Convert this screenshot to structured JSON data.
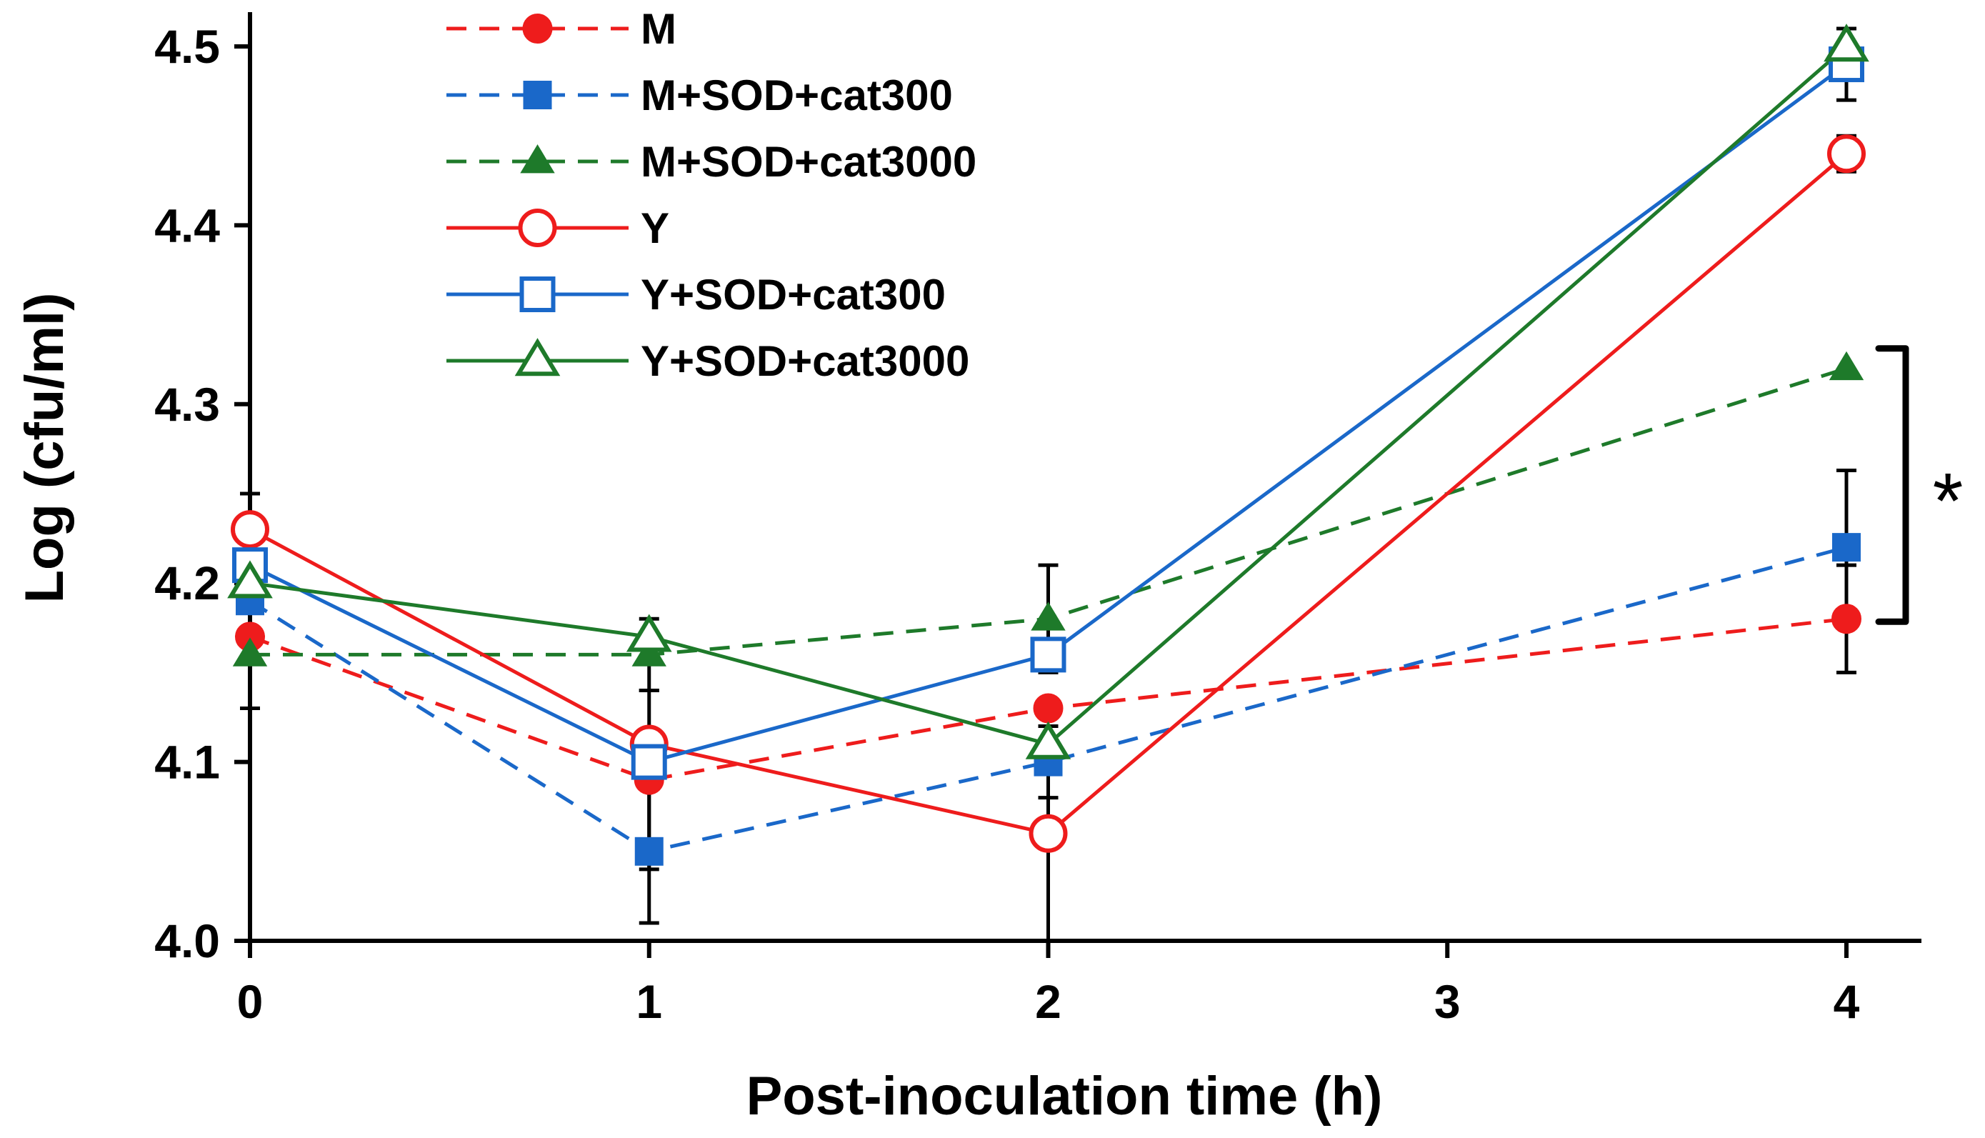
{
  "chart_data": {
    "type": "line",
    "xlabel": "Post-inoculation time (h)",
    "ylabel": "Log (cfu/ml)",
    "xlim": [
      0,
      4
    ],
    "ylim": [
      4.0,
      4.5
    ],
    "xticks": [
      0,
      1,
      2,
      3,
      4
    ],
    "xtick_labels": [
      "0",
      "1",
      "2",
      "3",
      "4"
    ],
    "yticks": [
      4.0,
      4.1,
      4.2,
      4.3,
      4.4,
      4.5
    ],
    "ytick_labels": [
      "4.0",
      "4.1",
      "4.2",
      "4.3",
      "4.4",
      "4.5"
    ],
    "grid": false,
    "legend_position": "top-center",
    "series": [
      {
        "name": "M",
        "color": "#ee1c1c",
        "linestyle": "dashed",
        "marker": "circle",
        "filled": true,
        "x": [
          0,
          1,
          2,
          4
        ],
        "y": [
          4.17,
          4.09,
          4.13,
          4.18
        ],
        "err": [
          0,
          0.05,
          0,
          0.03
        ]
      },
      {
        "name": "M+SOD+cat300",
        "color": "#1a68c9",
        "linestyle": "dashed",
        "marker": "square",
        "filled": true,
        "x": [
          0,
          1,
          2,
          4
        ],
        "y": [
          4.19,
          4.05,
          4.1,
          4.22
        ],
        "err": [
          0.06,
          0.04,
          0.02,
          0.043
        ]
      },
      {
        "name": "M+SOD+cat3000",
        "color": "#1e7a2a",
        "linestyle": "dashed",
        "marker": "triangle",
        "filled": true,
        "x": [
          0,
          1,
          2,
          4
        ],
        "y": [
          4.16,
          4.16,
          4.18,
          4.32
        ],
        "err": [
          0,
          0.02,
          0.03,
          0
        ]
      },
      {
        "name": "Y",
        "color": "#ee1c1c",
        "linestyle": "solid",
        "marker": "circle",
        "filled": false,
        "x": [
          0,
          1,
          2,
          4
        ],
        "y": [
          4.23,
          4.11,
          4.06,
          4.44
        ],
        "err": [
          0,
          0,
          0.06,
          0.01
        ]
      },
      {
        "name": "Y+SOD+cat300",
        "color": "#1a68c9",
        "linestyle": "solid",
        "marker": "square",
        "filled": false,
        "x": [
          0,
          1,
          2,
          4
        ],
        "y": [
          4.21,
          4.1,
          4.16,
          4.49
        ],
        "err": [
          0,
          0,
          0,
          0.02
        ]
      },
      {
        "name": "Y+SOD+cat3000",
        "color": "#1e7a2a",
        "linestyle": "solid",
        "marker": "triangle",
        "filled": false,
        "x": [
          0,
          1,
          2,
          4
        ],
        "y": [
          4.2,
          4.17,
          4.11,
          4.5
        ],
        "err": [
          0,
          0,
          0,
          0.01
        ]
      }
    ],
    "annotations": [
      {
        "text": "*",
        "type": "significance-bracket",
        "x": 4,
        "y_from": 4.18,
        "y_to": 4.32
      }
    ]
  }
}
